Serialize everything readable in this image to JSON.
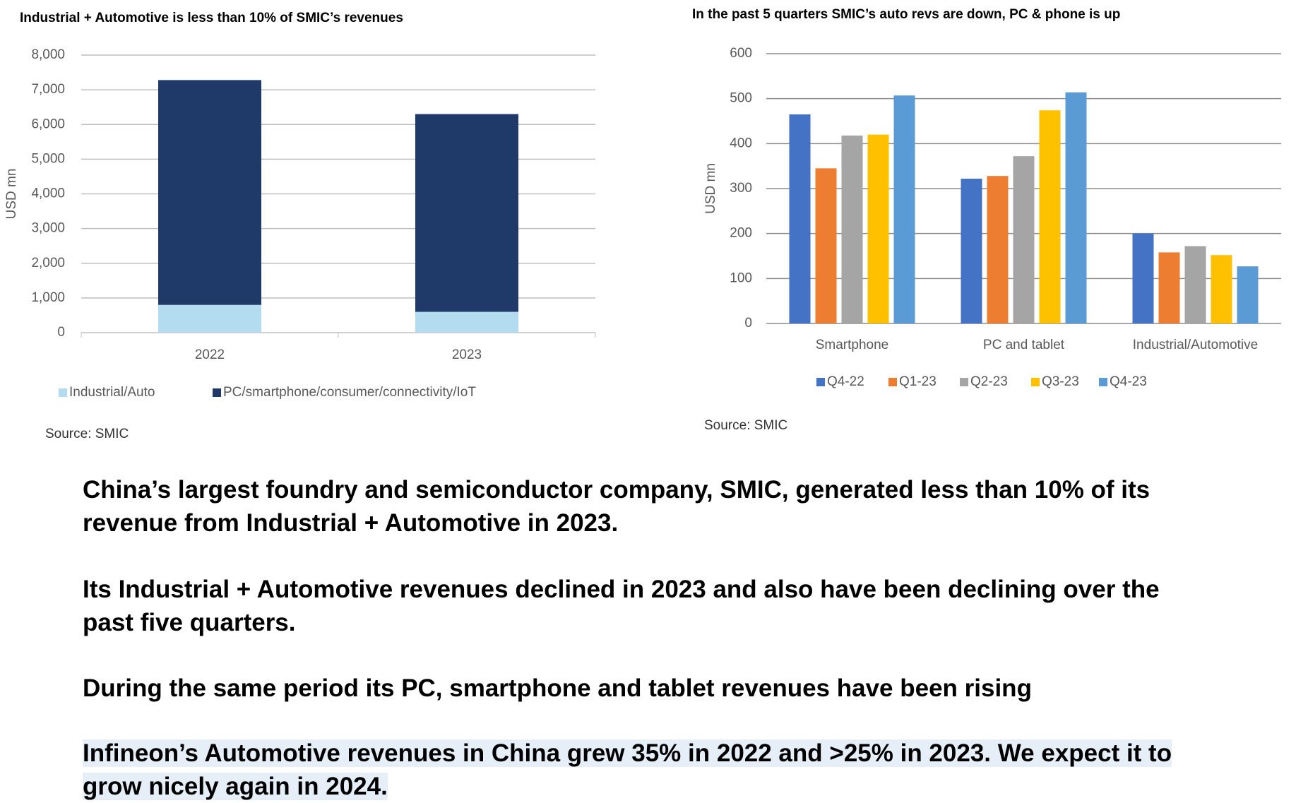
{
  "chart_data": [
    {
      "type": "stacked_bar",
      "title": "Industrial + Automotive is less than 10% of SMIC’s revenues",
      "ylabel": "USD mn",
      "categories": [
        "2022",
        "2023"
      ],
      "series": [
        {
          "name": "Industrial/Auto",
          "color": "#b4dcf0",
          "values": [
            800,
            600
          ]
        },
        {
          "name": "PC/smartphone/consumer/connectivity/IoT",
          "color": "#1f3a68",
          "values": [
            6480,
            5700
          ]
        }
      ],
      "ylim": [
        0,
        8000
      ],
      "yticks": [
        0,
        {
          "value": 1000,
          "label": "1,000"
        },
        {
          "value": 2000,
          "label": "2,000"
        },
        {
          "value": 3000,
          "label": "3,000"
        },
        {
          "value": 4000,
          "label": "4,000"
        },
        {
          "value": 5000,
          "label": "5,000"
        },
        {
          "value": 6000,
          "label": "6,000"
        },
        {
          "value": 7000,
          "label": "7,000"
        },
        {
          "value": 8000,
          "label": "8,000"
        }
      ],
      "grid": true,
      "legend": "bottom",
      "source": "Source: SMIC"
    },
    {
      "type": "grouped_bar",
      "title": "In the past 5 quarters SMIC’s auto revs are down, PC & phone is up",
      "ylabel": "USD mn",
      "categories": [
        "Smartphone",
        "PC and tablet",
        "Industrial/Automotive"
      ],
      "series": [
        {
          "name": "Q4-22",
          "color": "#4472c4",
          "values": [
            465,
            322,
            200
          ]
        },
        {
          "name": "Q1-23",
          "color": "#ed7d31",
          "values": [
            345,
            328,
            158
          ]
        },
        {
          "name": "Q2-23",
          "color": "#a5a5a5",
          "values": [
            418,
            372,
            172
          ]
        },
        {
          "name": "Q3-23",
          "color": "#ffc000",
          "values": [
            420,
            474,
            152
          ]
        },
        {
          "name": "Q4-23",
          "color": "#5b9bd5",
          "values": [
            507,
            514,
            127
          ]
        }
      ],
      "ylim": [
        0,
        600
      ],
      "yticks": [
        0,
        100,
        200,
        300,
        400,
        500,
        600
      ],
      "grid": true,
      "legend": "bottom",
      "source": "Source: SMIC"
    }
  ],
  "paragraphs": [
    "China’s largest foundry and semiconductor company, SMIC, generated less than 10% of its revenue from Industrial + Automotive in 2023.",
    "Its Industrial + Automotive revenues declined in 2023 and also have been declining over the past five quarters.",
    "During the same period its PC, smartphone and tablet revenues have been rising",
    "Infineon’s Automotive revenues in China grew 35% in 2022 and >25% in 2023. We expect it to grow nicely again in 2024."
  ]
}
